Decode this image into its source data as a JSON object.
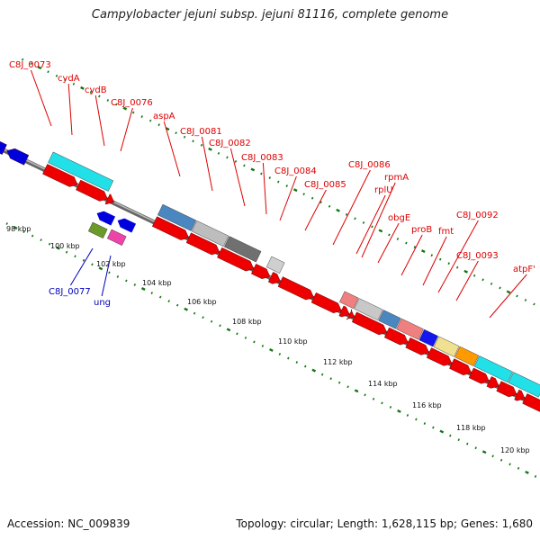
{
  "title": "Campylobacter jejuni subsp. jejuni 81116, complete genome",
  "footer": {
    "accession": "Accession: NC_009839",
    "topology": "Topology: circular; Length: 1,628,115 bp; Genes: 1,680"
  },
  "colors": {
    "forward_arrow": "#ee0000",
    "reverse_arrow": "#0000dd",
    "forward_label": "#dd0000",
    "reverse_label": "#0000bb",
    "tick": "#117711",
    "backbone": "#888888"
  },
  "scale_labels": [
    "98 kbp",
    "100 kbp",
    "102 kbp",
    "104 kbp",
    "106 kbp",
    "108 kbp",
    "110 kbp",
    "112 kbp",
    "114 kbp",
    "116 kbp",
    "118 kbp",
    "120 kbp"
  ],
  "forward_genes": [
    {
      "label": "C8J_0073"
    },
    {
      "label": "cydA"
    },
    {
      "label": "cydB"
    },
    {
      "label": "C8J_0076"
    },
    {
      "label": "aspA"
    },
    {
      "label": "C8J_0081"
    },
    {
      "label": "C8J_0082"
    },
    {
      "label": "C8J_0083"
    },
    {
      "label": "C8J_0084"
    },
    {
      "label": "C8J_0085"
    },
    {
      "label": "C8J_0086"
    },
    {
      "label": "rplU"
    },
    {
      "label": "rpmA"
    },
    {
      "label": "obgE"
    },
    {
      "label": "proB"
    },
    {
      "label": "fmt"
    },
    {
      "label": "C8J_0092"
    },
    {
      "label": "C8J_0093"
    },
    {
      "label": "atpF'"
    }
  ],
  "reverse_genes": [
    {
      "label": "C8J_0077"
    },
    {
      "label": "ung"
    }
  ]
}
